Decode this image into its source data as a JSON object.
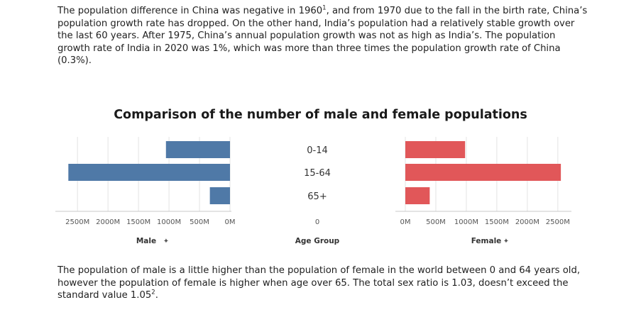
{
  "paragraphs": {
    "top": {
      "before": "The population difference in China was negative in 1960",
      "sup": "1",
      "after": ", and from 1970 due to the fall in the birth rate, China’s population growth rate has dropped. On the other hand, India’s population had a relatively stable growth over the last 60 years. After 1975, China’s annual population growth was not as high as India’s. The population growth rate of India in 2020 was 1%, which was more than three times the population growth rate of China (0.3%)."
    },
    "bottom": {
      "before": "The population of male is a little higher than the population of female in the world between 0 and 64 years old, however the population of female is higher when age over 65. The total sex ratio is 1.03, doesn’t exceed the standard value 1.05",
      "sup": "2",
      "after": "."
    }
  },
  "colors": {
    "male": "#4f79a7",
    "female": "#e15759",
    "grid": "#e3e3e3",
    "axis": "#c8c8c8"
  },
  "chart_data": {
    "type": "bar",
    "title": "Comparison of the number of male and female populations",
    "categories": [
      "0-14",
      "15-64",
      "65+"
    ],
    "center_axis_label": "0",
    "series": [
      {
        "name": "Male",
        "values": [
          1050,
          2650,
          330
        ],
        "xlabel": "Male",
        "ticks": [
          "2500M",
          "2000M",
          "1500M",
          "1000M",
          "500M",
          "0M"
        ],
        "tick_values": [
          2500,
          2000,
          1500,
          1000,
          500,
          0
        ],
        "xlim": [
          0,
          2700
        ],
        "direction": "reversed"
      },
      {
        "name": "Female",
        "values": [
          980,
          2550,
          400
        ],
        "xlabel": "Female",
        "ticks": [
          "0M",
          "500M",
          "1000M",
          "1500M",
          "2000M",
          "2500M"
        ],
        "tick_values": [
          0,
          500,
          1000,
          1500,
          2000,
          2500
        ],
        "xlim": [
          0,
          2700
        ],
        "direction": "normal"
      }
    ],
    "center_title": "Age Group",
    "pin_icon": "pin-icon",
    "grid": true
  }
}
